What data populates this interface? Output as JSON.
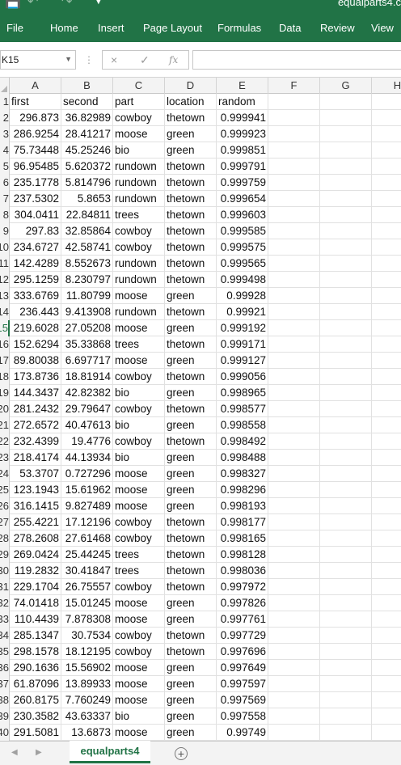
{
  "window": {
    "title": "equalparts4.c",
    "quick_access": [
      "save-icon",
      "undo-icon",
      "redo-icon",
      "customize-qat-icon"
    ]
  },
  "ribbon": {
    "tabs": [
      "File",
      "Home",
      "Insert",
      "Page Layout",
      "Formulas",
      "Data",
      "Review",
      "View"
    ]
  },
  "formula_bar": {
    "name_box": "K15",
    "cancel_icon": "×",
    "enter_icon": "✓",
    "function_icon": "fx",
    "value": ""
  },
  "columns": [
    "A",
    "B",
    "C",
    "D",
    "E",
    "F",
    "G",
    "H"
  ],
  "rows": [
    {
      "num": "1",
      "cells": [
        "first",
        "second",
        "part",
        "location",
        "random"
      ]
    },
    {
      "num": "2",
      "cells": [
        "296.873",
        "36.82989",
        "cowboy",
        "thetown",
        "0.999941"
      ]
    },
    {
      "num": "3",
      "cells": [
        "286.9254",
        "28.41217",
        "moose",
        "green",
        "0.999923"
      ]
    },
    {
      "num": "4",
      "cells": [
        "75.73448",
        "45.25246",
        "bio",
        "green",
        "0.999851"
      ]
    },
    {
      "num": "5",
      "cells": [
        "96.95485",
        "5.620372",
        "rundown",
        "thetown",
        "0.999791"
      ]
    },
    {
      "num": "6",
      "cells": [
        "235.1778",
        "5.814796",
        "rundown",
        "thetown",
        "0.999759"
      ]
    },
    {
      "num": "7",
      "cells": [
        "237.5302",
        "5.8653",
        "rundown",
        "thetown",
        "0.999654"
      ]
    },
    {
      "num": "8",
      "cells": [
        "304.0411",
        "22.84811",
        "trees",
        "thetown",
        "0.999603"
      ]
    },
    {
      "num": "9",
      "cells": [
        "297.83",
        "32.85864",
        "cowboy",
        "thetown",
        "0.999585"
      ]
    },
    {
      "num": "10",
      "cells": [
        "234.6727",
        "42.58741",
        "cowboy",
        "thetown",
        "0.999575"
      ]
    },
    {
      "num": "11",
      "cells": [
        "142.4289",
        "8.552673",
        "rundown",
        "thetown",
        "0.999565"
      ]
    },
    {
      "num": "12",
      "cells": [
        "295.1259",
        "8.230797",
        "rundown",
        "thetown",
        "0.999498"
      ]
    },
    {
      "num": "13",
      "cells": [
        "333.6769",
        "11.80799",
        "moose",
        "green",
        "0.99928"
      ]
    },
    {
      "num": "14",
      "cells": [
        "236.443",
        "9.413908",
        "rundown",
        "thetown",
        "0.99921"
      ]
    },
    {
      "num": "15",
      "cells": [
        "219.6028",
        "27.05208",
        "moose",
        "green",
        "0.999192"
      ]
    },
    {
      "num": "16",
      "cells": [
        "152.6294",
        "35.33868",
        "trees",
        "thetown",
        "0.999171"
      ]
    },
    {
      "num": "17",
      "cells": [
        "89.80038",
        "6.697717",
        "moose",
        "green",
        "0.999127"
      ]
    },
    {
      "num": "18",
      "cells": [
        "173.8736",
        "18.81914",
        "cowboy",
        "thetown",
        "0.999056"
      ]
    },
    {
      "num": "19",
      "cells": [
        "144.3437",
        "42.82382",
        "bio",
        "green",
        "0.998965"
      ]
    },
    {
      "num": "20",
      "cells": [
        "281.2432",
        "29.79647",
        "cowboy",
        "thetown",
        "0.998577"
      ]
    },
    {
      "num": "21",
      "cells": [
        "272.6572",
        "40.47613",
        "bio",
        "green",
        "0.998558"
      ]
    },
    {
      "num": "22",
      "cells": [
        "232.4399",
        "19.4776",
        "cowboy",
        "thetown",
        "0.998492"
      ]
    },
    {
      "num": "23",
      "cells": [
        "218.4174",
        "44.13934",
        "bio",
        "green",
        "0.998488"
      ]
    },
    {
      "num": "24",
      "cells": [
        "53.3707",
        "0.727296",
        "moose",
        "green",
        "0.998327"
      ]
    },
    {
      "num": "25",
      "cells": [
        "123.1943",
        "15.61962",
        "moose",
        "green",
        "0.998296"
      ]
    },
    {
      "num": "26",
      "cells": [
        "316.1415",
        "9.827489",
        "moose",
        "green",
        "0.998193"
      ]
    },
    {
      "num": "27",
      "cells": [
        "255.4221",
        "17.12196",
        "cowboy",
        "thetown",
        "0.998177"
      ]
    },
    {
      "num": "28",
      "cells": [
        "278.2608",
        "27.61468",
        "cowboy",
        "thetown",
        "0.998165"
      ]
    },
    {
      "num": "29",
      "cells": [
        "269.0424",
        "25.44245",
        "trees",
        "thetown",
        "0.998128"
      ]
    },
    {
      "num": "30",
      "cells": [
        "119.2832",
        "30.41847",
        "trees",
        "thetown",
        "0.998036"
      ]
    },
    {
      "num": "31",
      "cells": [
        "229.1704",
        "26.75557",
        "cowboy",
        "thetown",
        "0.997972"
      ]
    },
    {
      "num": "32",
      "cells": [
        "74.01418",
        "15.01245",
        "moose",
        "green",
        "0.997826"
      ]
    },
    {
      "num": "33",
      "cells": [
        "110.4439",
        "7.878308",
        "moose",
        "green",
        "0.997761"
      ]
    },
    {
      "num": "34",
      "cells": [
        "285.1347",
        "30.7534",
        "cowboy",
        "thetown",
        "0.997729"
      ]
    },
    {
      "num": "35",
      "cells": [
        "298.1578",
        "18.12195",
        "cowboy",
        "thetown",
        "0.997696"
      ]
    },
    {
      "num": "36",
      "cells": [
        "290.1636",
        "15.56902",
        "moose",
        "green",
        "0.997649"
      ]
    },
    {
      "num": "37",
      "cells": [
        "61.87096",
        "13.89933",
        "moose",
        "green",
        "0.997597"
      ]
    },
    {
      "num": "38",
      "cells": [
        "260.8175",
        "7.760249",
        "moose",
        "green",
        "0.997569"
      ]
    },
    {
      "num": "39",
      "cells": [
        "230.3582",
        "43.63337",
        "bio",
        "green",
        "0.997558"
      ]
    },
    {
      "num": "40",
      "cells": [
        "291.5081",
        "13.6873",
        "moose",
        "green",
        "0.99749"
      ]
    }
  ],
  "active_row": "15",
  "sheet_tabs": {
    "active": "equalparts4",
    "add_icon": "+"
  },
  "colors": {
    "accent": "#217346",
    "header_bg": "#f3f3f3",
    "gridline": "#e1e1e1"
  }
}
